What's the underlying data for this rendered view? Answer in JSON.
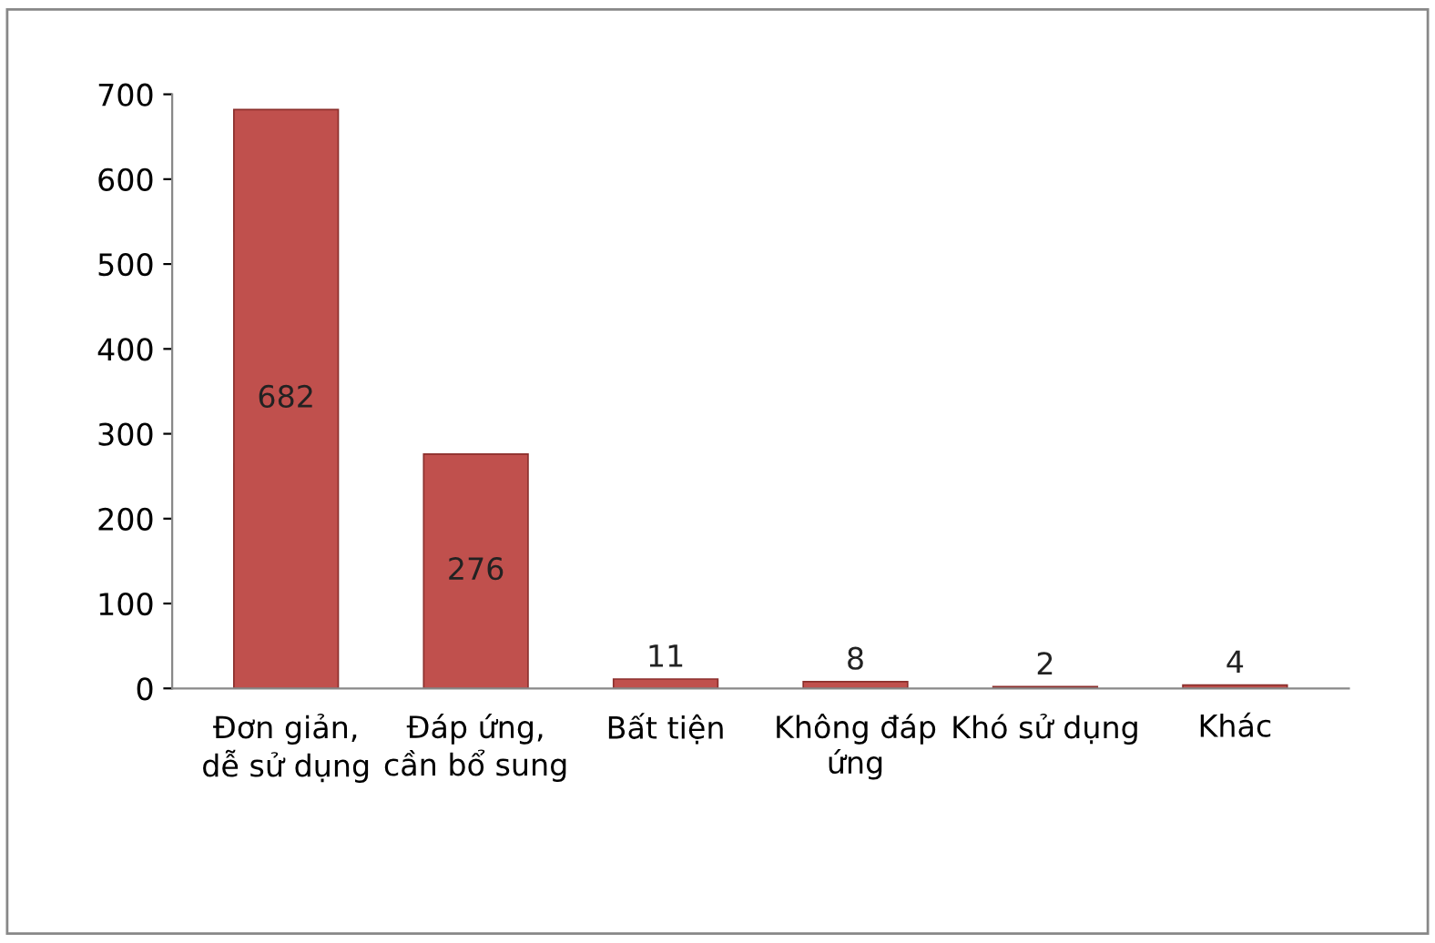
{
  "chart_data": {
    "type": "bar",
    "categories": [
      "Đơn giản, dễ sử dụng",
      "Đáp ứng, cần bổ sung",
      "Bất tiện",
      "Không đáp ứng",
      "Khó sử dụng",
      "Khác"
    ],
    "values": [
      682,
      276,
      11,
      8,
      2,
      4
    ],
    "color": "#c0504d",
    "ylim": [
      0,
      700
    ],
    "yticks": [
      0,
      100,
      200,
      300,
      400,
      500,
      600,
      700
    ],
    "data_labels": true,
    "grid": false,
    "legend": false
  }
}
